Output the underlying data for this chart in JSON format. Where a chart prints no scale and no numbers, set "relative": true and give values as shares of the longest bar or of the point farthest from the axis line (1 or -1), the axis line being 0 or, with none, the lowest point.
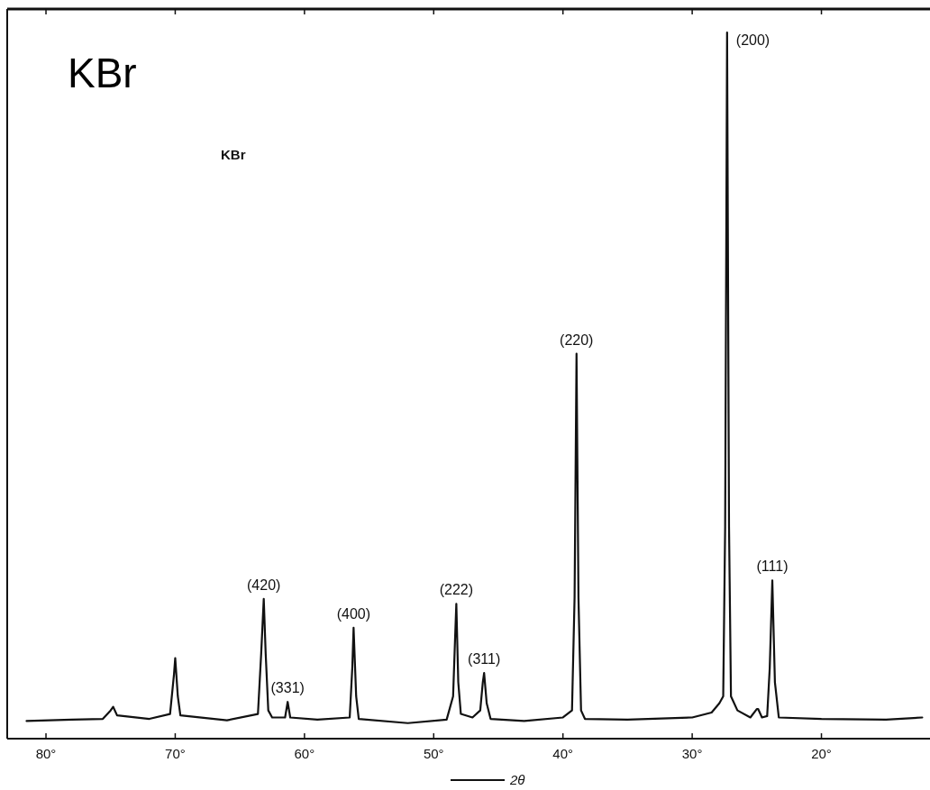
{
  "chart_data": {
    "type": "line",
    "title": "KBr",
    "xlabel": "2θ",
    "relative": true,
    "xlim": [
      83,
      11.6
    ],
    "xticks": [
      {
        "value": 80,
        "label": "80°"
      },
      {
        "value": 70,
        "label": "70°"
      },
      {
        "value": 60,
        "label": "60°"
      },
      {
        "value": 50,
        "label": "50°"
      },
      {
        "value": 40,
        "label": "40°"
      },
      {
        "value": 30,
        "label": "30°"
      },
      {
        "value": 20,
        "label": "20°"
      }
    ],
    "series": [
      {
        "color": "#111111",
        "x": [
          81.5,
          78,
          75.6,
          75.0,
          74.8,
          74.5,
          72,
          70.4,
          70.1,
          70.0,
          69.8,
          69.6,
          66,
          63.6,
          63.35,
          63.15,
          63.0,
          62.8,
          62.5,
          61.5,
          61.3,
          61.1,
          59,
          56.5,
          56.3,
          56.2,
          56.0,
          55.8,
          52,
          49,
          48.5,
          48.35,
          48.25,
          48.1,
          47.9,
          47.0,
          46.4,
          46.2,
          46.1,
          45.9,
          45.6,
          43,
          40,
          39.3,
          39.1,
          38.95,
          38.8,
          38.6,
          38.3,
          35,
          30,
          28.5,
          27.9,
          27.6,
          27.45,
          27.3,
          27.15,
          27.0,
          26.5,
          25.5,
          25.0,
          24.9,
          24.6,
          24.2,
          24.0,
          23.8,
          23.6,
          23.3,
          20,
          15,
          12.2
        ],
        "values": [
          0.025,
          0.027,
          0.028,
          0.04,
          0.045,
          0.033,
          0.028,
          0.035,
          0.09,
          0.114,
          0.06,
          0.033,
          0.026,
          0.035,
          0.12,
          0.198,
          0.12,
          0.04,
          0.03,
          0.03,
          0.052,
          0.03,
          0.027,
          0.03,
          0.1,
          0.157,
          0.06,
          0.028,
          0.022,
          0.027,
          0.06,
          0.14,
          0.191,
          0.08,
          0.035,
          0.03,
          0.04,
          0.08,
          0.093,
          0.05,
          0.028,
          0.025,
          0.03,
          0.04,
          0.2,
          0.545,
          0.2,
          0.04,
          0.028,
          0.027,
          0.03,
          0.037,
          0.05,
          0.06,
          0.3,
          1,
          0.3,
          0.06,
          0.04,
          0.03,
          0.042,
          0.042,
          0.03,
          0.032,
          0.1,
          0.224,
          0.08,
          0.03,
          0.028,
          0.027,
          0.03
        ]
      }
    ],
    "annotations": [
      "KBr",
      {
        "text": "(420)",
        "x": 63.15,
        "y": 0.198
      },
      {
        "text": "(331)",
        "x": 61.3,
        "y": 0.052
      },
      {
        "text": "(400)",
        "x": 56.2,
        "y": 0.157
      },
      {
        "text": "(222)",
        "x": 48.25,
        "y": 0.191
      },
      {
        "text": "(311)",
        "x": 46.1,
        "y": 0.093
      },
      {
        "text": "(220)",
        "x": 38.95,
        "y": 0.545
      },
      {
        "text": "(200)",
        "x": 27.3,
        "y": 1
      },
      {
        "text": "(111)",
        "x": 23.8,
        "y": 0.224
      }
    ]
  }
}
